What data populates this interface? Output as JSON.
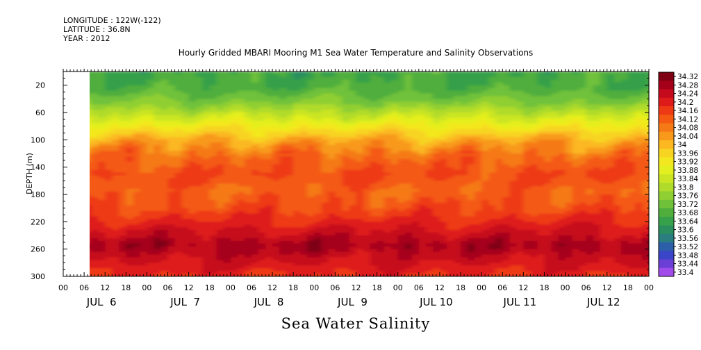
{
  "header": {
    "lines": [
      "LONGITUDE : 122W(-122)",
      "LATITUDE : 36.8N",
      "YEAR : 2012"
    ]
  },
  "chart_data": {
    "type": "heatmap",
    "title": "Hourly Gridded MBARI Mooring M1 Sea Water Temperature and Salinity Observations",
    "xlabel": "Sea Water Salinity",
    "ylabel": "DEPTH (m)",
    "y_range": [
      0,
      300
    ],
    "y_inverted": true,
    "y_ticks": [
      20,
      60,
      100,
      140,
      180,
      220,
      260,
      300
    ],
    "x_hour_ticks": [
      "00",
      "06",
      "12",
      "18",
      "00",
      "06",
      "12",
      "18",
      "00",
      "06",
      "12",
      "18",
      "00",
      "06",
      "12",
      "18",
      "00",
      "06",
      "12",
      "18",
      "00",
      "06",
      "12",
      "18",
      "00",
      "06",
      "12",
      "18",
      "00"
    ],
    "x_day_labels": [
      "JUL  6",
      "JUL  7",
      "JUL  8",
      "JUL  9",
      "JUL 10",
      "JUL 11",
      "JUL 12"
    ],
    "data_start_hour": 8,
    "colorbar_levels": [
      "34.32",
      "34.28",
      "34.24",
      "34.2",
      "34.16",
      "34.12",
      "34.08",
      "34.04",
      "34",
      "33.96",
      "33.92",
      "33.88",
      "33.84",
      "33.8",
      "33.76",
      "33.72",
      "33.68",
      "33.64",
      "33.6",
      "33.56",
      "33.52",
      "33.48",
      "33.44",
      "33.4"
    ],
    "colorbar_colors": [
      "#7e0012",
      "#a5001a",
      "#c60a1e",
      "#de1a1a",
      "#ee3a14",
      "#f45a12",
      "#f57a16",
      "#f8991c",
      "#fbb821",
      "#f8d422",
      "#f3e81f",
      "#e4ef1f",
      "#cbe524",
      "#b0db2b",
      "#90cf32",
      "#6fc13a",
      "#4fae3c",
      "#36a04a",
      "#2a8f5e",
      "#2a7e80",
      "#2d5fa8",
      "#3a45c8",
      "#6b3fd6",
      "#a04bea"
    ],
    "depth_profile": [
      {
        "depth": 5,
        "value": 33.68
      },
      {
        "depth": 25,
        "value": 33.7
      },
      {
        "depth": 45,
        "value": 33.76
      },
      {
        "depth": 65,
        "value": 33.86
      },
      {
        "depth": 85,
        "value": 33.96
      },
      {
        "depth": 105,
        "value": 34.06
      },
      {
        "depth": 125,
        "value": 34.12
      },
      {
        "depth": 150,
        "value": 34.16
      },
      {
        "depth": 175,
        "value": 34.13
      },
      {
        "depth": 200,
        "value": 34.16
      },
      {
        "depth": 225,
        "value": 34.22
      },
      {
        "depth": 255,
        "value": 34.3
      },
      {
        "depth": 280,
        "value": 34.24
      },
      {
        "depth": 300,
        "value": 34.2
      }
    ]
  }
}
